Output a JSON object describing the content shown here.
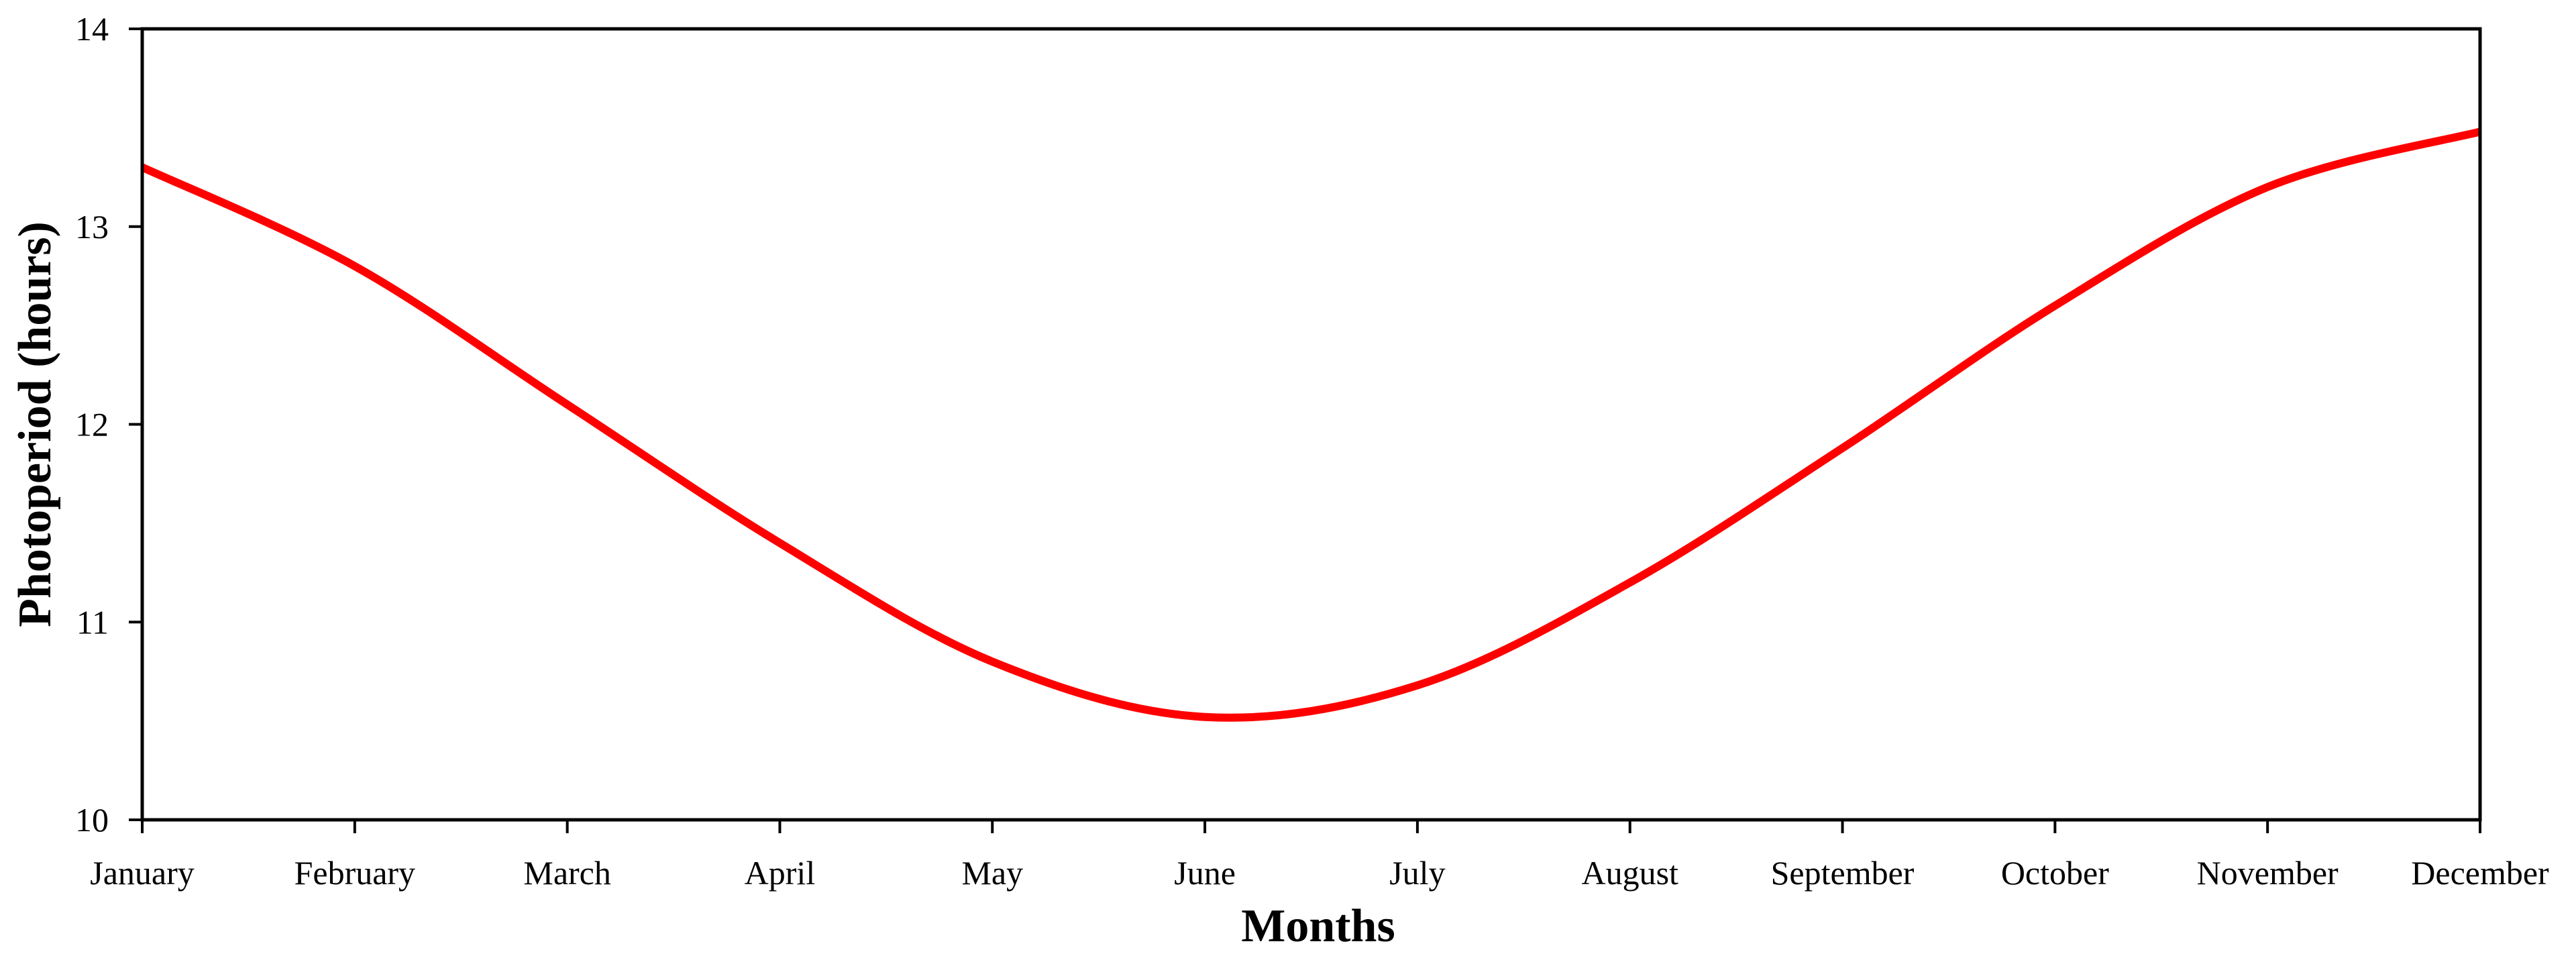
{
  "chart_data": {
    "type": "line",
    "title": "",
    "xlabel": "Months",
    "ylabel": "Photoperiod (hours)",
    "categories": [
      "January",
      "February",
      "March",
      "April",
      "May",
      "June",
      "July",
      "August",
      "September",
      "October",
      "November",
      "December"
    ],
    "ylim": [
      10,
      14
    ],
    "yticks": [
      "10",
      "11",
      "12",
      "13",
      "14"
    ],
    "grid": false,
    "legend": "none",
    "series": [
      {
        "values": [
          13.3,
          12.8,
          12.1,
          11.4,
          10.8,
          10.52,
          10.68,
          11.2,
          11.88,
          12.6,
          13.2,
          13.48
        ],
        "color": "#ff0000"
      }
    ]
  }
}
